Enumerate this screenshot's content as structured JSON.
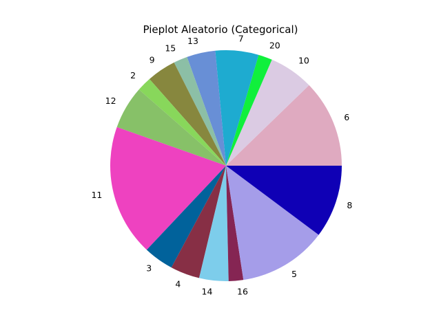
{
  "chart_data": {
    "type": "pie",
    "title": "Pieplot Aleatorio (Categorical)",
    "start_angle_deg": 0,
    "direction": "counterclockwise",
    "slices": [
      {
        "label": "6",
        "value": 12.0,
        "color": "#dfaac0"
      },
      {
        "label": "10",
        "value": 6.1,
        "color": "#dbcbe3"
      },
      {
        "label": "20",
        "value": 1.9,
        "color": "#10f03c"
      },
      {
        "label": "7",
        "value": 5.9,
        "color": "#1eabd0"
      },
      {
        "label": "13",
        "value": 3.9,
        "color": "#688fd6"
      },
      {
        "label": "15",
        "value": 1.9,
        "color": "#8cbfa6"
      },
      {
        "label": "9",
        "value": 4.0,
        "color": "#87873e"
      },
      {
        "label": "2",
        "value": 2.0,
        "color": "#88d75b"
      },
      {
        "label": "12",
        "value": 5.9,
        "color": "#87c168"
      },
      {
        "label": "11",
        "value": 18.0,
        "color": "#ee42c0"
      },
      {
        "label": "3",
        "value": 4.1,
        "color": "#01629b"
      },
      {
        "label": "4",
        "value": 4.0,
        "color": "#872f45"
      },
      {
        "label": "14",
        "value": 4.0,
        "color": "#7dcdeb"
      },
      {
        "label": "16",
        "value": 2.0,
        "color": "#852553"
      },
      {
        "label": "5",
        "value": 12.1,
        "color": "#a59de9"
      },
      {
        "label": "8",
        "value": 10.0,
        "color": "#0f00b5"
      }
    ]
  }
}
